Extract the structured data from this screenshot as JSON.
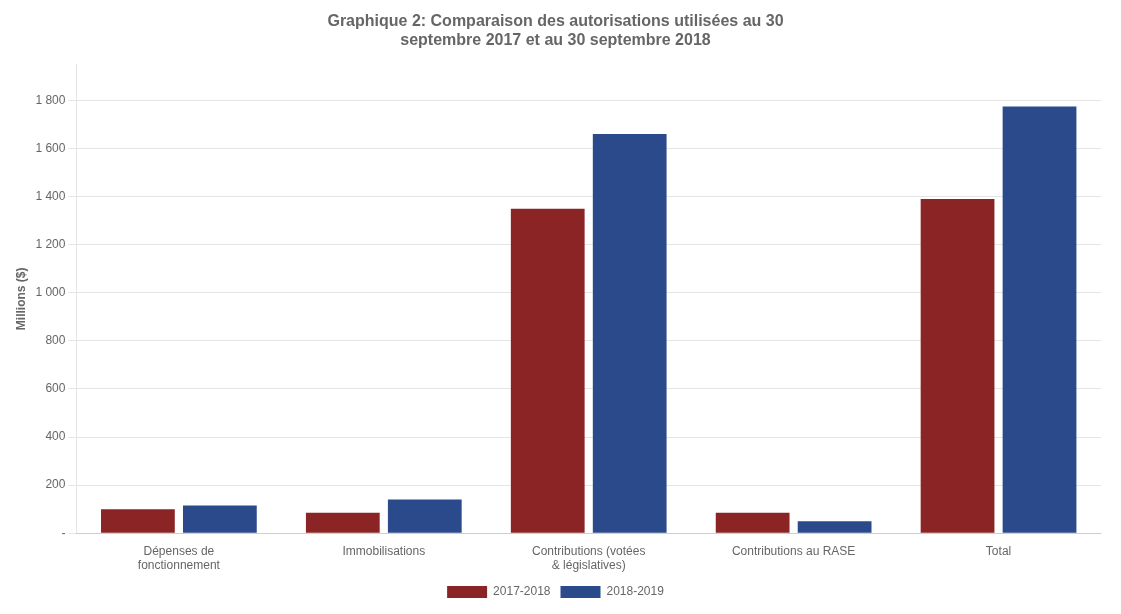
{
  "chart_data": {
    "type": "bar",
    "title": "Graphique 2: Comparaison des autorisations utilisées au 30\nseptembre 2017 et au 30 septembre 2018",
    "ylabel": "Millions ($)",
    "categories": [
      "Dépenses de\nfonctionnement",
      "Immobilisations",
      "Contributions (votées\n& législatives)",
      "Contributions au RASE",
      "Total"
    ],
    "series": [
      {
        "name": "2017-2018",
        "color": "#8B2525",
        "values": [
          100,
          85,
          1350,
          85,
          1390
        ]
      },
      {
        "name": "2018-2019",
        "color": "#2B4A8B",
        "values": [
          115,
          140,
          1660,
          50,
          1775
        ]
      }
    ],
    "ylim": [
      0,
      1950
    ],
    "yticks": [
      {
        "value": 0,
        "label": "-"
      },
      200,
      400,
      600,
      800,
      {
        "value": 1000,
        "label": "1 000"
      },
      {
        "value": 1200,
        "label": "1 200"
      },
      {
        "value": 1400,
        "label": "1 400"
      },
      {
        "value": 1600,
        "label": "1 600"
      },
      {
        "value": 1800,
        "label": "1 800"
      }
    ],
    "grid": true,
    "legend": "bottom"
  }
}
